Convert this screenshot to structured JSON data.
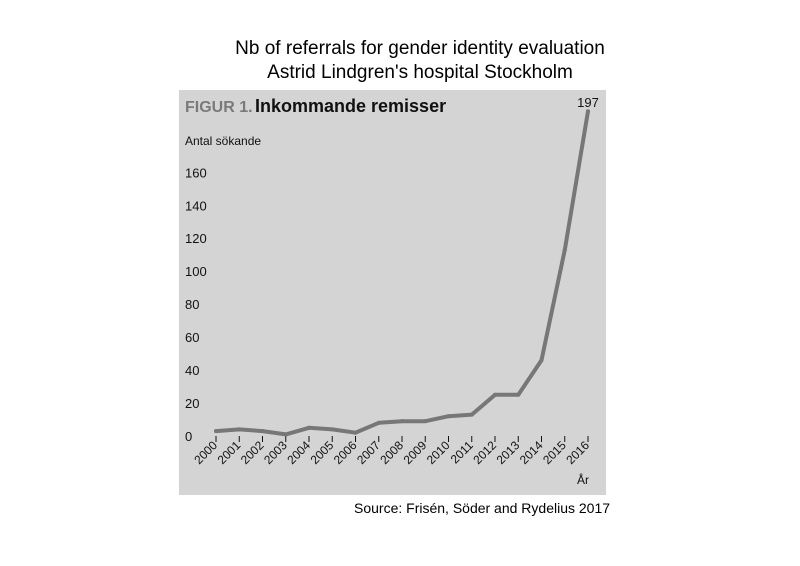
{
  "header": {
    "title_line1": "Nb of referrals for gender identity evaluation",
    "title_line2": "Astrid Lindgren's hospital Stockholm"
  },
  "source": "Source: Frisén, Söder and Rydelius 2017",
  "chart_data": {
    "type": "line",
    "figure_label": "FIGUR 1.",
    "title": "Inkommande remisser",
    "ylabel": "Antal sökande",
    "xlabel": "År",
    "ylim": [
      0,
      160
    ],
    "yticks": [
      0,
      20,
      40,
      60,
      80,
      100,
      120,
      140,
      160
    ],
    "x": [
      "2000",
      "2001",
      "2002",
      "2003",
      "2004",
      "2005",
      "2006",
      "2007",
      "2008",
      "2009",
      "2010",
      "2011",
      "2012",
      "2013",
      "2014",
      "2015",
      "2016"
    ],
    "values": [
      3,
      4,
      3,
      1,
      5,
      4,
      2,
      8,
      9,
      9,
      12,
      13,
      25,
      25,
      46,
      113,
      197
    ],
    "annotations": [
      {
        "x": "2016",
        "label": "197"
      }
    ],
    "line_color": "#777777",
    "background_color": "#d4d4d4",
    "grid": false
  }
}
